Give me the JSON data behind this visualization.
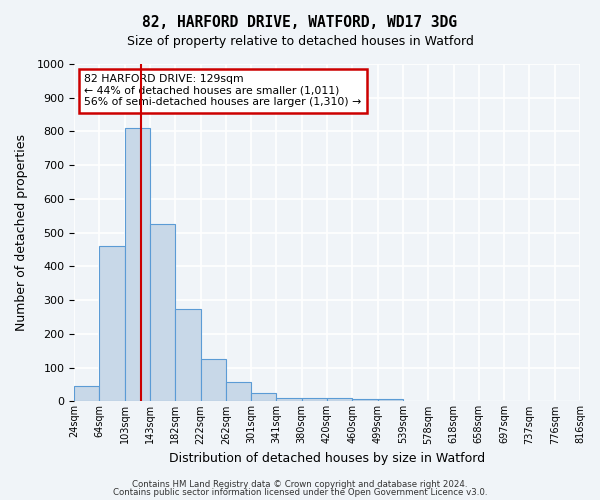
{
  "title1": "82, HARFORD DRIVE, WATFORD, WD17 3DG",
  "title2": "Size of property relative to detached houses in Watford",
  "xlabel": "Distribution of detached houses by size in Watford",
  "ylabel": "Number of detached properties",
  "bin_labels": [
    "24sqm",
    "64sqm",
    "103sqm",
    "143sqm",
    "182sqm",
    "222sqm",
    "262sqm",
    "301sqm",
    "341sqm",
    "380sqm",
    "420sqm",
    "460sqm",
    "499sqm",
    "539sqm",
    "578sqm",
    "618sqm",
    "658sqm",
    "697sqm",
    "737sqm",
    "776sqm",
    "816sqm"
  ],
  "bar_values": [
    45,
    460,
    810,
    525,
    275,
    125,
    57,
    25,
    10,
    10,
    10,
    8,
    8,
    0,
    0,
    0,
    0,
    0,
    0,
    0
  ],
  "bar_color": "#c8d8e8",
  "bar_edge_color": "#5b9bd5",
  "vline_x": 2.65,
  "vline_color": "#cc0000",
  "ylim": [
    0,
    1000
  ],
  "yticks": [
    0,
    100,
    200,
    300,
    400,
    500,
    600,
    700,
    800,
    900,
    1000
  ],
  "annotation_text": "82 HARFORD DRIVE: 129sqm\n← 44% of detached houses are smaller (1,011)\n56% of semi-detached houses are larger (1,310) →",
  "annotation_box_color": "#ffffff",
  "annotation_box_edge": "#cc0000",
  "footer1": "Contains HM Land Registry data © Crown copyright and database right 2024.",
  "footer2": "Contains public sector information licensed under the Open Government Licence v3.0.",
  "background_color": "#f0f4f8",
  "grid_color": "#ffffff"
}
